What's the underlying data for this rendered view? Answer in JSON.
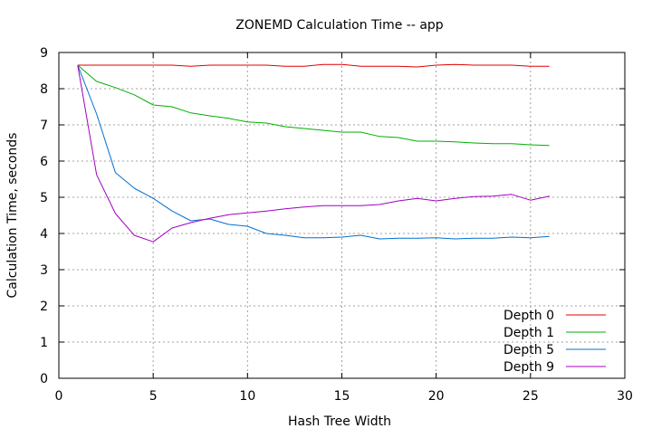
{
  "chart_data": {
    "type": "line",
    "title": "ZONEMD Calculation Time -- app",
    "xlabel": "Hash Tree Width",
    "ylabel": "Calculation Time, seconds",
    "xlim": [
      0,
      30
    ],
    "ylim": [
      0,
      9
    ],
    "x_ticks": [
      0,
      5,
      10,
      15,
      20,
      25,
      30
    ],
    "y_ticks": [
      0,
      1,
      2,
      3,
      4,
      5,
      6,
      7,
      8,
      9
    ],
    "grid": true,
    "legend_position": "bottom-right",
    "x": [
      1,
      2,
      3,
      4,
      5,
      6,
      7,
      8,
      9,
      10,
      11,
      12,
      13,
      14,
      15,
      16,
      17,
      18,
      19,
      20,
      21,
      22,
      23,
      24,
      25,
      26
    ],
    "series": [
      {
        "name": "Depth 0",
        "color": "#e00000",
        "values": [
          8.65,
          8.65,
          8.65,
          8.65,
          8.65,
          8.65,
          8.62,
          8.65,
          8.65,
          8.65,
          8.65,
          8.62,
          8.62,
          8.67,
          8.67,
          8.62,
          8.62,
          8.62,
          8.6,
          8.65,
          8.67,
          8.65,
          8.65,
          8.65,
          8.62,
          8.62
        ]
      },
      {
        "name": "Depth 1",
        "color": "#00b000",
        "values": [
          8.65,
          8.2,
          8.03,
          7.83,
          7.55,
          7.5,
          7.33,
          7.25,
          7.18,
          7.08,
          7.05,
          6.95,
          6.9,
          6.85,
          6.8,
          6.8,
          6.68,
          6.65,
          6.55,
          6.55,
          6.53,
          6.5,
          6.48,
          6.48,
          6.45,
          6.43
        ]
      },
      {
        "name": "Depth 5",
        "color": "#0070d0",
        "values": [
          8.65,
          7.3,
          5.68,
          5.25,
          4.97,
          4.62,
          4.35,
          4.4,
          4.25,
          4.2,
          4.0,
          3.95,
          3.88,
          3.88,
          3.9,
          3.95,
          3.85,
          3.87,
          3.87,
          3.88,
          3.85,
          3.87,
          3.87,
          3.9,
          3.88,
          3.92
        ]
      },
      {
        "name": "Depth 9",
        "color": "#a000c0",
        "values": [
          8.65,
          5.62,
          4.55,
          3.95,
          3.77,
          4.15,
          4.3,
          4.42,
          4.52,
          4.57,
          4.62,
          4.68,
          4.73,
          4.77,
          4.77,
          4.77,
          4.8,
          4.9,
          4.97,
          4.9,
          4.97,
          5.02,
          5.03,
          5.08,
          4.92,
          5.03
        ]
      }
    ]
  }
}
